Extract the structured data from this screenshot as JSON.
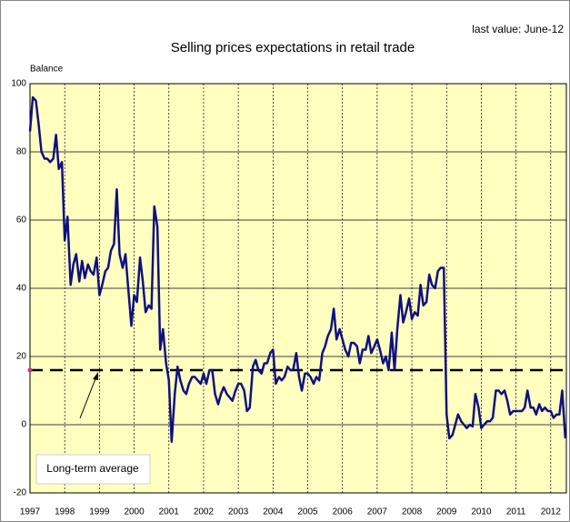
{
  "chart_data": {
    "type": "line",
    "title": "Selling prices expectations in retail trade",
    "subtitle": "last value: June-12",
    "y_label": "Balance",
    "annotation": "Long-term average",
    "average": 16,
    "average_color": "#000000",
    "ylim": [
      -20,
      100
    ],
    "yticks": [
      -20,
      0,
      20,
      40,
      60,
      80,
      100
    ],
    "xlim": [
      1997,
      2012.45
    ],
    "xticks": [
      1997,
      1998,
      1999,
      2000,
      2001,
      2002,
      2003,
      2004,
      2005,
      2006,
      2007,
      2008,
      2009,
      2010,
      2011,
      2012
    ],
    "grid": true,
    "series": [
      {
        "name": "Selling prices expectations",
        "color": "#101080",
        "x": [
          1997,
          1997.08,
          1997.17,
          1997.25,
          1997.33,
          1997.42,
          1997.5,
          1997.58,
          1997.67,
          1997.75,
          1997.83,
          1997.92,
          1998,
          1998.08,
          1998.17,
          1998.25,
          1998.33,
          1998.42,
          1998.5,
          1998.58,
          1998.67,
          1998.75,
          1998.83,
          1998.92,
          1999,
          1999.08,
          1999.17,
          1999.25,
          1999.33,
          1999.42,
          1999.5,
          1999.58,
          1999.67,
          1999.75,
          1999.83,
          1999.92,
          2000,
          2000.08,
          2000.17,
          2000.25,
          2000.33,
          2000.42,
          2000.5,
          2000.58,
          2000.67,
          2000.75,
          2000.83,
          2000.92,
          2001,
          2001.08,
          2001.17,
          2001.25,
          2001.33,
          2001.42,
          2001.5,
          2001.58,
          2001.67,
          2001.75,
          2001.83,
          2001.92,
          2002,
          2002.08,
          2002.17,
          2002.25,
          2002.33,
          2002.42,
          2002.5,
          2002.58,
          2002.67,
          2002.75,
          2002.83,
          2002.92,
          2003,
          2003.08,
          2003.17,
          2003.25,
          2003.33,
          2003.42,
          2003.5,
          2003.58,
          2003.67,
          2003.75,
          2003.83,
          2003.92,
          2004,
          2004.08,
          2004.17,
          2004.25,
          2004.33,
          2004.42,
          2004.5,
          2004.58,
          2004.67,
          2004.75,
          2004.83,
          2004.92,
          2005,
          2005.08,
          2005.17,
          2005.25,
          2005.33,
          2005.42,
          2005.5,
          2005.58,
          2005.67,
          2005.75,
          2005.83,
          2005.92,
          2006,
          2006.08,
          2006.17,
          2006.25,
          2006.33,
          2006.42,
          2006.5,
          2006.58,
          2006.67,
          2006.75,
          2006.83,
          2006.92,
          2007,
          2007.08,
          2007.17,
          2007.25,
          2007.33,
          2007.42,
          2007.5,
          2007.58,
          2007.67,
          2007.75,
          2007.83,
          2007.92,
          2008,
          2008.08,
          2008.17,
          2008.25,
          2008.33,
          2008.42,
          2008.5,
          2008.58,
          2008.67,
          2008.75,
          2008.83,
          2008.92,
          2009,
          2009.08,
          2009.17,
          2009.25,
          2009.33,
          2009.42,
          2009.5,
          2009.58,
          2009.67,
          2009.75,
          2009.83,
          2009.92,
          2010,
          2010.08,
          2010.17,
          2010.25,
          2010.33,
          2010.42,
          2010.5,
          2010.58,
          2010.67,
          2010.75,
          2010.83,
          2010.92,
          2011,
          2011.08,
          2011.17,
          2011.25,
          2011.33,
          2011.42,
          2011.5,
          2011.58,
          2011.67,
          2011.75,
          2011.83,
          2011.92,
          2012,
          2012.08,
          2012.17,
          2012.25,
          2012.33,
          2012.42
        ],
        "values": [
          86,
          96,
          95,
          88,
          80,
          78,
          78,
          77,
          78,
          85,
          75,
          77,
          54,
          61,
          41,
          47,
          50,
          42,
          48,
          43,
          47,
          45,
          44,
          49,
          38,
          41,
          45,
          46,
          51,
          53,
          69,
          50,
          46,
          50,
          40,
          29,
          38,
          36,
          49,
          42,
          33,
          35,
          34,
          64,
          58,
          22,
          28,
          18,
          13,
          -5,
          9,
          17,
          13,
          10,
          9,
          12,
          14,
          14,
          13,
          12,
          15,
          12,
          16,
          16,
          9,
          6,
          9,
          11,
          9,
          8,
          7,
          10,
          12,
          12,
          10,
          4,
          5,
          17,
          19,
          16,
          15,
          18,
          18,
          21,
          22,
          12,
          14,
          13,
          14,
          17,
          16,
          16,
          21,
          14,
          10,
          15,
          15,
          14,
          12,
          14,
          13,
          21,
          23,
          26,
          28,
          34,
          25,
          28,
          25,
          22,
          20,
          24,
          24,
          23,
          18,
          22,
          22,
          26,
          21,
          23,
          25,
          22,
          18,
          20,
          16,
          27,
          16,
          28,
          38,
          30,
          33,
          37,
          31,
          33,
          32,
          41,
          35,
          36,
          44,
          41,
          40,
          45,
          46,
          46,
          3,
          -4,
          -3,
          0,
          3,
          1,
          0,
          -1,
          0,
          -0.5,
          9,
          5,
          -1,
          0,
          1,
          1,
          2,
          10,
          10,
          9,
          10,
          7,
          3,
          4,
          4,
          4,
          4,
          5,
          10,
          5,
          5,
          3,
          6,
          4,
          5,
          4,
          4,
          2,
          3,
          3,
          10,
          -4
        ]
      }
    ]
  }
}
